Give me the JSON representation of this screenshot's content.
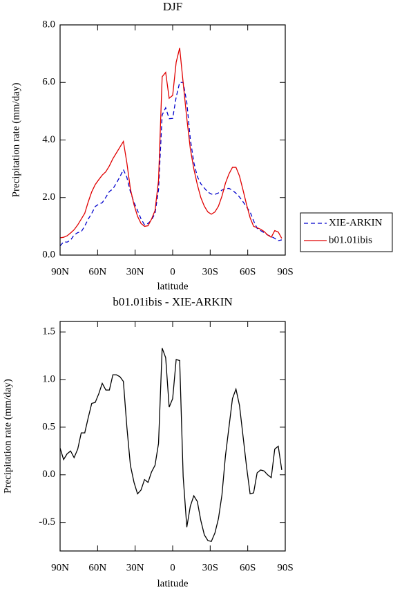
{
  "chart_data": [
    {
      "type": "line",
      "title": "DJF",
      "xlabel": "latitude",
      "ylabel": "Precipitation rate (mm/day)",
      "x": [
        90,
        87.2,
        84.4,
        81.6,
        78.8,
        75.9,
        73.1,
        70.3,
        67.5,
        64.7,
        61.9,
        59.1,
        56.3,
        53.4,
        50.6,
        47.8,
        45.0,
        42.2,
        39.4,
        36.6,
        33.8,
        30.9,
        28.1,
        25.3,
        22.5,
        19.7,
        16.9,
        14.1,
        11.3,
        8.4,
        5.6,
        2.8,
        0,
        -2.8,
        -5.6,
        -8.4,
        -11.3,
        -14.1,
        -16.9,
        -19.7,
        -22.5,
        -25.3,
        -28.1,
        -30.9,
        -33.8,
        -36.6,
        -39.4,
        -42.2,
        -45.0,
        -47.8,
        -50.6,
        -53.4,
        -56.3,
        -59.1,
        -61.9,
        -64.7,
        -67.5,
        -70.3,
        -73.1,
        -75.9,
        -78.8,
        -81.6,
        -84.4,
        -87.2
      ],
      "series": [
        {
          "name": "XIE-ARKIN",
          "color": "#0000cc",
          "style": "dashed",
          "values": [
            0.32,
            0.46,
            0.45,
            0.52,
            0.7,
            0.78,
            0.81,
            1.01,
            1.25,
            1.45,
            1.69,
            1.77,
            1.82,
            2.01,
            2.21,
            2.3,
            2.5,
            2.72,
            2.97,
            2.7,
            2.2,
            1.83,
            1.55,
            1.26,
            1.05,
            1.1,
            1.22,
            1.45,
            2.27,
            4.87,
            5.12,
            4.74,
            4.75,
            5.49,
            6.0,
            6.0,
            5.3,
            4.03,
            3.22,
            2.73,
            2.48,
            2.33,
            2.19,
            2.12,
            2.11,
            2.16,
            2.26,
            2.3,
            2.32,
            2.25,
            2.15,
            2.02,
            1.85,
            1.67,
            1.5,
            1.19,
            0.93,
            0.85,
            0.78,
            0.7,
            0.65,
            0.58,
            0.5,
            0.53
          ]
        },
        {
          "name": "b01.01ibis",
          "color": "#e00000",
          "style": "solid",
          "values": [
            0.6,
            0.62,
            0.67,
            0.77,
            0.88,
            1.05,
            1.25,
            1.45,
            1.85,
            2.2,
            2.45,
            2.62,
            2.78,
            2.9,
            3.1,
            3.35,
            3.55,
            3.75,
            3.95,
            3.2,
            2.3,
            1.75,
            1.35,
            1.1,
            1.0,
            1.02,
            1.25,
            1.55,
            2.6,
            6.2,
            6.35,
            5.45,
            5.55,
            6.7,
            7.2,
            5.98,
            4.75,
            3.7,
            3.0,
            2.45,
            2.0,
            1.7,
            1.5,
            1.42,
            1.5,
            1.7,
            2.05,
            2.5,
            2.82,
            3.05,
            3.05,
            2.75,
            2.25,
            1.75,
            1.3,
            1.0,
            0.95,
            0.9,
            0.82,
            0.7,
            0.62,
            0.85,
            0.8,
            0.58
          ]
        }
      ],
      "xlim": [
        90,
        -90
      ],
      "xticks": [
        {
          "value": 90,
          "label": "90N"
        },
        {
          "value": 60,
          "label": "60N"
        },
        {
          "value": 30,
          "label": "30N"
        },
        0,
        {
          "value": -30,
          "label": "30S"
        },
        {
          "value": -60,
          "label": "60S"
        },
        {
          "value": -90,
          "label": "90S"
        }
      ],
      "ylim": [
        0,
        8
      ],
      "yticks": [
        {
          "value": 0,
          "label": "0.0"
        },
        {
          "value": 2,
          "label": "2.0"
        },
        {
          "value": 4,
          "label": "4.0"
        },
        {
          "value": 6,
          "label": "6.0"
        },
        {
          "value": 8,
          "label": "8.0"
        }
      ],
      "grid": false,
      "legend": "right"
    },
    {
      "type": "line",
      "title": "b01.01ibis - XIE-ARKIN",
      "xlabel": "latitude",
      "ylabel": "Precipitation rate (mm/day)",
      "x": [
        90,
        87.2,
        84.4,
        81.6,
        78.8,
        75.9,
        73.1,
        70.3,
        67.5,
        64.7,
        61.9,
        59.1,
        56.3,
        53.4,
        50.6,
        47.8,
        45.0,
        42.2,
        39.4,
        36.6,
        33.8,
        30.9,
        28.1,
        25.3,
        22.5,
        19.7,
        16.9,
        14.1,
        11.3,
        8.4,
        5.6,
        2.8,
        0,
        -2.8,
        -5.6,
        -8.4,
        -11.3,
        -14.1,
        -16.9,
        -19.7,
        -22.5,
        -25.3,
        -28.1,
        -30.9,
        -33.8,
        -36.6,
        -39.4,
        -42.2,
        -45.0,
        -47.8,
        -50.6,
        -53.4,
        -56.3,
        -59.1,
        -61.9,
        -64.7,
        -67.5,
        -70.3,
        -73.1,
        -75.9,
        -78.8,
        -81.6,
        -84.4,
        -87.2
      ],
      "values": [
        0.28,
        0.16,
        0.22,
        0.25,
        0.18,
        0.27,
        0.44,
        0.44,
        0.6,
        0.75,
        0.76,
        0.85,
        0.96,
        0.89,
        0.89,
        1.05,
        1.05,
        1.03,
        0.98,
        0.5,
        0.1,
        -0.08,
        -0.2,
        -0.16,
        -0.05,
        -0.08,
        0.03,
        0.1,
        0.33,
        1.33,
        1.23,
        0.71,
        0.8,
        1.21,
        1.2,
        -0.02,
        -0.55,
        -0.33,
        -0.22,
        -0.28,
        -0.48,
        -0.63,
        -0.69,
        -0.7,
        -0.61,
        -0.46,
        -0.21,
        0.2,
        0.5,
        0.8,
        0.9,
        0.73,
        0.4,
        0.08,
        -0.2,
        -0.19,
        0.02,
        0.05,
        0.04,
        0.0,
        -0.03,
        0.27,
        0.3,
        0.05
      ],
      "color": "#000000",
      "xlim": [
        90,
        -90
      ],
      "xticks": [
        {
          "value": 90,
          "label": "90N"
        },
        {
          "value": 60,
          "label": "60N"
        },
        {
          "value": 30,
          "label": "30N"
        },
        0,
        {
          "value": -30,
          "label": "30S"
        },
        {
          "value": -60,
          "label": "60S"
        },
        {
          "value": -90,
          "label": "90S"
        }
      ],
      "ylim": [
        -0.8,
        1.61
      ],
      "yticks": [
        -0.5,
        {
          "value": 0,
          "label": "0.0"
        },
        0.5,
        {
          "value": 1,
          "label": "1.0"
        },
        1.5
      ],
      "grid": false
    }
  ]
}
